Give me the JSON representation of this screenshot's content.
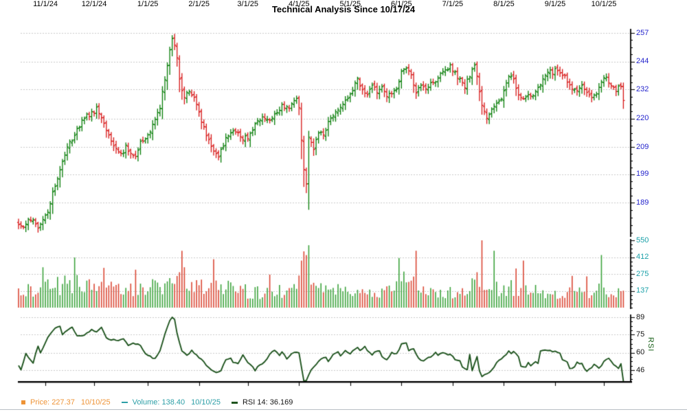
{
  "title": "Technical Analysis Since 10/17/24",
  "rsi_axis_title": "RSI",
  "legend": {
    "price": {
      "label": "Price:",
      "value": "227.37",
      "date": "10/10/25",
      "color": "#ee9336"
    },
    "volume": {
      "label": "Volume:",
      "value": "138.40",
      "date": "10/10/25",
      "color": "#2b9ea6"
    },
    "rsi": {
      "label": "RSI 14:",
      "value": "36.169",
      "color": "#141414",
      "marker_color": "#1d531d"
    }
  },
  "chart_data": {
    "type": "ohlc",
    "subcharts": [
      "price-ohlc",
      "volume-bars",
      "rsi-line"
    ],
    "x_range": {
      "first_date": "10/17/24",
      "last_date": "10/10/25",
      "trading_days": 249
    },
    "month_ticks": [
      [
        "11/1/24",
        11
      ],
      [
        "12/1/24",
        31
      ],
      [
        "1/1/25",
        53
      ],
      [
        "2/1/25",
        74
      ],
      [
        "3/1/25",
        94
      ],
      [
        "4/1/25",
        115
      ],
      [
        "5/1/25",
        136
      ],
      [
        "6/1/25",
        157
      ],
      [
        "7/1/25",
        178
      ],
      [
        "8/1/25",
        199
      ],
      [
        "9/1/25",
        220
      ],
      [
        "10/1/25",
        240
      ]
    ],
    "grid_color": "#c8c8c8",
    "seed": 13,
    "price_panel": {
      "scale": "log",
      "axis_ticks": [
        257,
        244,
        232,
        220,
        209,
        199,
        189
      ],
      "axis_range": [
        189,
        257
      ],
      "label_color": "#2323cc",
      "up_color": "#017a01",
      "down_color": "#d61212",
      "final_close": 227.37,
      "close_keypoints": [
        [
          0,
          182
        ],
        [
          2,
          180.5
        ],
        [
          4,
          184
        ],
        [
          6,
          182.5
        ],
        [
          8,
          181
        ],
        [
          10,
          183
        ],
        [
          12,
          186
        ],
        [
          14,
          192
        ],
        [
          16,
          197
        ],
        [
          18,
          204
        ],
        [
          20,
          209
        ],
        [
          22,
          212
        ],
        [
          24,
          216
        ],
        [
          26,
          219
        ],
        [
          28,
          221
        ],
        [
          30,
          222
        ],
        [
          32,
          224
        ],
        [
          34,
          221
        ],
        [
          36,
          215
        ],
        [
          38,
          211
        ],
        [
          40,
          208
        ],
        [
          42,
          206
        ],
        [
          44,
          209
        ],
        [
          46,
          207
        ],
        [
          48,
          206
        ],
        [
          50,
          211
        ],
        [
          52,
          212
        ],
        [
          54,
          215
        ],
        [
          56,
          219
        ],
        [
          58,
          225
        ],
        [
          60,
          236
        ],
        [
          62,
          250
        ],
        [
          63,
          254.5
        ],
        [
          64,
          251
        ],
        [
          65,
          245
        ],
        [
          66,
          236
        ],
        [
          67,
          231
        ],
        [
          68,
          229
        ],
        [
          70,
          231
        ],
        [
          72,
          228
        ],
        [
          74,
          222
        ],
        [
          76,
          216
        ],
        [
          78,
          211
        ],
        [
          80,
          207
        ],
        [
          82,
          206
        ],
        [
          84,
          210
        ],
        [
          86,
          214
        ],
        [
          88,
          216
        ],
        [
          90,
          214
        ],
        [
          92,
          212
        ],
        [
          94,
          213
        ],
        [
          96,
          216
        ],
        [
          98,
          219
        ],
        [
          100,
          221
        ],
        [
          102,
          219
        ],
        [
          104,
          221
        ],
        [
          106,
          223
        ],
        [
          108,
          225
        ],
        [
          110,
          224
        ],
        [
          112,
          226
        ],
        [
          114,
          228
        ],
        [
          115,
          225
        ],
        [
          116,
          211
        ],
        [
          117,
          201
        ],
        [
          118,
          196
        ],
        [
          119,
          212
        ],
        [
          120,
          210
        ],
        [
          121,
          208
        ],
        [
          123,
          215
        ],
        [
          125,
          213
        ],
        [
          127,
          219
        ],
        [
          129,
          222
        ],
        [
          131,
          224
        ],
        [
          133,
          226
        ],
        [
          135,
          228
        ],
        [
          137,
          232
        ],
        [
          139,
          236
        ],
        [
          141,
          232
        ],
        [
          143,
          230
        ],
        [
          145,
          233
        ],
        [
          147,
          231
        ],
        [
          149,
          234
        ],
        [
          151,
          229
        ],
        [
          153,
          231
        ],
        [
          155,
          233
        ],
        [
          157,
          239
        ],
        [
          159,
          242
        ],
        [
          161,
          238
        ],
        [
          163,
          231
        ],
        [
          165,
          233
        ],
        [
          167,
          232
        ],
        [
          169,
          234
        ],
        [
          171,
          236
        ],
        [
          173,
          238
        ],
        [
          175,
          240
        ],
        [
          177,
          242
        ],
        [
          179,
          239
        ],
        [
          181,
          236
        ],
        [
          183,
          233
        ],
        [
          185,
          238
        ],
        [
          187,
          242
        ],
        [
          188,
          237
        ],
        [
          190,
          226
        ],
        [
          192,
          221
        ],
        [
          194,
          224
        ],
        [
          196,
          226
        ],
        [
          198,
          228
        ],
        [
          200,
          234
        ],
        [
          201,
          238
        ],
        [
          203,
          236
        ],
        [
          205,
          230
        ],
        [
          207,
          228
        ],
        [
          209,
          229
        ],
        [
          211,
          229
        ],
        [
          213,
          232
        ],
        [
          215,
          236
        ],
        [
          217,
          240
        ],
        [
          219,
          239
        ],
        [
          221,
          241
        ],
        [
          223,
          238
        ],
        [
          225,
          236
        ],
        [
          227,
          233
        ],
        [
          229,
          231
        ],
        [
          231,
          233
        ],
        [
          233,
          231
        ],
        [
          235,
          229
        ],
        [
          237,
          231
        ],
        [
          239,
          236
        ],
        [
          241,
          237
        ],
        [
          243,
          233
        ],
        [
          245,
          232
        ],
        [
          246,
          234
        ],
        [
          247,
          233
        ],
        [
          248,
          227.37
        ]
      ]
    },
    "volume_panel": {
      "axis_ticks": [
        550,
        412,
        275,
        137
      ],
      "axis_range": [
        0,
        550
      ],
      "label_color": "#1aa0a8",
      "up_color": "#3aa23a",
      "down_color": "#da4532",
      "final_volume": 138.4,
      "base_keypoints": [
        [
          0,
          110
        ],
        [
          5,
          140
        ],
        [
          10,
          200
        ],
        [
          15,
          170
        ],
        [
          23,
          220
        ],
        [
          30,
          150
        ],
        [
          40,
          170
        ],
        [
          50,
          140
        ],
        [
          60,
          190
        ],
        [
          67,
          260
        ],
        [
          75,
          170
        ],
        [
          85,
          155
        ],
        [
          95,
          130
        ],
        [
          105,
          125
        ],
        [
          114,
          150
        ],
        [
          117,
          330
        ],
        [
          121,
          190
        ],
        [
          130,
          145
        ],
        [
          140,
          125
        ],
        [
          150,
          115
        ],
        [
          157,
          175
        ],
        [
          163,
          210
        ],
        [
          170,
          135
        ],
        [
          180,
          125
        ],
        [
          188,
          200
        ],
        [
          196,
          170
        ],
        [
          205,
          165
        ],
        [
          215,
          125
        ],
        [
          225,
          115
        ],
        [
          235,
          125
        ],
        [
          240,
          165
        ],
        [
          244,
          115
        ],
        [
          248,
          138.4
        ]
      ],
      "spikes": [
        [
          10,
          330
        ],
        [
          23,
          410
        ],
        [
          35,
          325
        ],
        [
          48,
          310
        ],
        [
          67,
          465
        ],
        [
          68,
          330
        ],
        [
          80,
          395
        ],
        [
          103,
          270
        ],
        [
          117,
          460
        ],
        [
          118,
          430
        ],
        [
          119,
          510
        ],
        [
          156,
          405
        ],
        [
          158,
          295
        ],
        [
          163,
          465
        ],
        [
          190,
          550
        ],
        [
          195,
          465
        ],
        [
          204,
          320
        ],
        [
          207,
          385
        ],
        [
          227,
          260
        ],
        [
          233,
          255
        ],
        [
          239,
          430
        ]
      ]
    },
    "rsi_panel": {
      "period": 14,
      "axis_ticks": [
        89,
        75,
        60,
        46
      ],
      "axis_range": [
        33,
        91
      ],
      "label_color": "#141414",
      "title_color": "#186018",
      "line_color": "#1d531d",
      "final_rsi": 36.169,
      "keypoints": [
        [
          0,
          50
        ],
        [
          1,
          46
        ],
        [
          3,
          59
        ],
        [
          6,
          52
        ],
        [
          8,
          66
        ],
        [
          9,
          60
        ],
        [
          12,
          73
        ],
        [
          15,
          80
        ],
        [
          17,
          82
        ],
        [
          18,
          75
        ],
        [
          20,
          78
        ],
        [
          22,
          81
        ],
        [
          24,
          74
        ],
        [
          26,
          74
        ],
        [
          28,
          76
        ],
        [
          30,
          79
        ],
        [
          32,
          77
        ],
        [
          34,
          81
        ],
        [
          36,
          72
        ],
        [
          38,
          71
        ],
        [
          40,
          70
        ],
        [
          43,
          71
        ],
        [
          45,
          66
        ],
        [
          47,
          68
        ],
        [
          50,
          66
        ],
        [
          52,
          60
        ],
        [
          54,
          57
        ],
        [
          56,
          55
        ],
        [
          58,
          62
        ],
        [
          60,
          75
        ],
        [
          62,
          86
        ],
        [
          63,
          89
        ],
        [
          64,
          87
        ],
        [
          65,
          76
        ],
        [
          66,
          68
        ],
        [
          67,
          62
        ],
        [
          69,
          58
        ],
        [
          71,
          62
        ],
        [
          73,
          58
        ],
        [
          75,
          55
        ],
        [
          77,
          50
        ],
        [
          79,
          46
        ],
        [
          81,
          44
        ],
        [
          83,
          46
        ],
        [
          85,
          54
        ],
        [
          87,
          56
        ],
        [
          88,
          52
        ],
        [
          90,
          51
        ],
        [
          92,
          58
        ],
        [
          94,
          52
        ],
        [
          96,
          49
        ],
        [
          97,
          46
        ],
        [
          98,
          49
        ],
        [
          101,
          53
        ],
        [
          103,
          59
        ],
        [
          105,
          62
        ],
        [
          107,
          58
        ],
        [
          108,
          61
        ],
        [
          110,
          55
        ],
        [
          112,
          59
        ],
        [
          114,
          61
        ],
        [
          115,
          60
        ],
        [
          116,
          48
        ],
        [
          117,
          35
        ],
        [
          118,
          38
        ],
        [
          119,
          42
        ],
        [
          120,
          46
        ],
        [
          121,
          49
        ],
        [
          123,
          53
        ],
        [
          124,
          55
        ],
        [
          126,
          57
        ],
        [
          127,
          53
        ],
        [
          129,
          59
        ],
        [
          131,
          61
        ],
        [
          132,
          57
        ],
        [
          133,
          60
        ],
        [
          134,
          62
        ],
        [
          136,
          59
        ],
        [
          137,
          62
        ],
        [
          139,
          64
        ],
        [
          140,
          62
        ],
        [
          142,
          65
        ],
        [
          143,
          62
        ],
        [
          145,
          58
        ],
        [
          146,
          61
        ],
        [
          148,
          62
        ],
        [
          149,
          57
        ],
        [
          151,
          55
        ],
        [
          153,
          60
        ],
        [
          155,
          59
        ],
        [
          157,
          67
        ],
        [
          159,
          68
        ],
        [
          160,
          62
        ],
        [
          162,
          63
        ],
        [
          164,
          56
        ],
        [
          166,
          53
        ],
        [
          167,
          55
        ],
        [
          169,
          57
        ],
        [
          171,
          60
        ],
        [
          172,
          58
        ],
        [
          174,
          60
        ],
        [
          176,
          58
        ],
        [
          177,
          59
        ],
        [
          179,
          55
        ],
        [
          181,
          53
        ],
        [
          182,
          48
        ],
        [
          184,
          47
        ],
        [
          185,
          59
        ],
        [
          186,
          46
        ],
        [
          188,
          57
        ],
        [
          189,
          45
        ],
        [
          190,
          41
        ],
        [
          191,
          42
        ],
        [
          193,
          44
        ],
        [
          195,
          48
        ],
        [
          196,
          52
        ],
        [
          198,
          55
        ],
        [
          200,
          59
        ],
        [
          201,
          62
        ],
        [
          202,
          59
        ],
        [
          203,
          61
        ],
        [
          205,
          57
        ],
        [
          206,
          49
        ],
        [
          208,
          48
        ],
        [
          209,
          52
        ],
        [
          210,
          49
        ],
        [
          212,
          53
        ],
        [
          213,
          51
        ],
        [
          214,
          61
        ],
        [
          216,
          62
        ],
        [
          220,
          61
        ],
        [
          222,
          60
        ],
        [
          223,
          55
        ],
        [
          225,
          52
        ],
        [
          226,
          47
        ],
        [
          228,
          49
        ],
        [
          229,
          52
        ],
        [
          231,
          51
        ],
        [
          232,
          47
        ],
        [
          233,
          45
        ],
        [
          235,
          48
        ],
        [
          236,
          51
        ],
        [
          238,
          47
        ],
        [
          239,
          49
        ],
        [
          240,
          53
        ],
        [
          242,
          56
        ],
        [
          243,
          53
        ],
        [
          245,
          49
        ],
        [
          246,
          47
        ],
        [
          247,
          51
        ],
        [
          248,
          36.169
        ]
      ]
    }
  }
}
